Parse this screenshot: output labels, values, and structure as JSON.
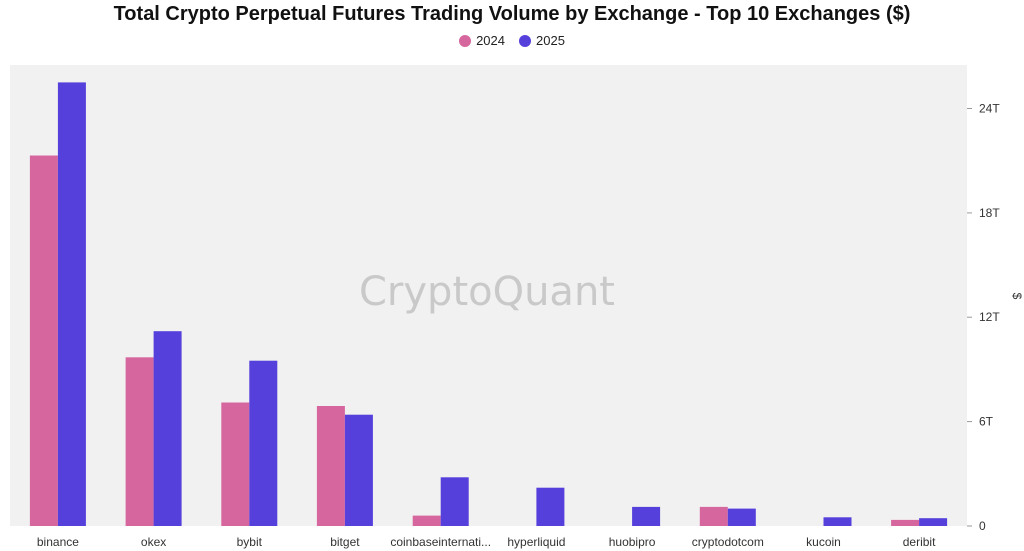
{
  "chart_data": {
    "type": "bar",
    "title": "Total Crypto Perpetual Futures Trading Volume by Exchange - Top 10 Exchanges ($)",
    "categories": [
      "binance",
      "okex",
      "bybit",
      "bitget",
      "coinbaseinternati...",
      "hyperliquid",
      "huobipro",
      "cryptodotcom",
      "kucoin",
      "deribit"
    ],
    "series": [
      {
        "name": "2024",
        "color": "#d6679e",
        "values": [
          21.3,
          9.7,
          7.1,
          6.9,
          0.6,
          0,
          0,
          1.1,
          0,
          0.35
        ]
      },
      {
        "name": "2025",
        "color": "#5540dc",
        "values": [
          25.5,
          11.2,
          9.5,
          6.4,
          2.8,
          2.2,
          1.1,
          1.0,
          0.5,
          0.45
        ]
      }
    ],
    "ylabel": "$",
    "ylim": [
      0,
      26.5
    ],
    "yticks": [
      0,
      6,
      12,
      18,
      24
    ],
    "ytick_labels": [
      "0",
      "6T",
      "12T",
      "18T",
      "24T"
    ],
    "grid": false,
    "legend": "top-center",
    "watermark": "CryptoQuant"
  }
}
